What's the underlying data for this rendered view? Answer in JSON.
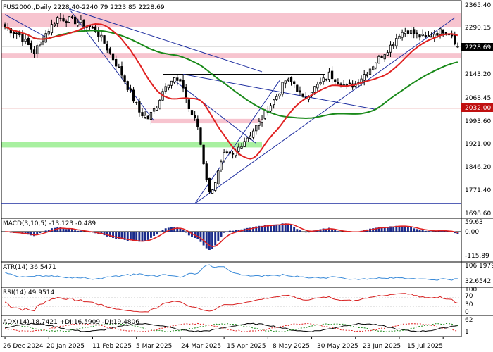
{
  "chart_data": {
    "type": "candlestick",
    "symbol": "FUS2000",
    "timeframe": "Daily",
    "ohlc_label": "FUS2000.,Daily  2228.40-2240.79 2223.85 2228.69",
    "last_open": 2228.4,
    "last_high": 2240.79,
    "last_low": 2223.85,
    "last_close": 2228.69,
    "last_price_label": "2228.69",
    "level_price": 2032.0,
    "level_label": "2032.00",
    "price_ylim": [
      1686,
      2372
    ],
    "price_ticks": [
      "2365.40",
      "2290.15",
      "2143.20",
      "2068.45",
      "1993.60",
      "1921.00",
      "1846.20",
      "1771.40",
      "1698.60"
    ],
    "x_dates": [
      "26 Dec 2024",
      "20 Jan 2025",
      "11 Feb 2025",
      "5 Mar 2025",
      "24 Mar 2025",
      "15 Apr 2025",
      "8 May 2025",
      "30 May 2025",
      "23 Jun 2025",
      "15 Jul 2025"
    ],
    "close_anchors": [
      [
        0,
        2290
      ],
      [
        5,
        2265
      ],
      [
        10,
        2210
      ],
      [
        14,
        2270
      ],
      [
        18,
        2320
      ],
      [
        23,
        2312
      ],
      [
        27,
        2300
      ],
      [
        31,
        2280
      ],
      [
        34,
        2240
      ],
      [
        37,
        2190
      ],
      [
        40,
        2140
      ],
      [
        43,
        2080
      ],
      [
        46,
        2020
      ],
      [
        49,
        2000
      ],
      [
        52,
        2040
      ],
      [
        55,
        2110
      ],
      [
        58,
        2125
      ],
      [
        61,
        2100
      ],
      [
        63,
        2030
      ],
      [
        66,
        1975
      ],
      [
        68,
        1860
      ],
      [
        70,
        1760
      ],
      [
        72,
        1800
      ],
      [
        75,
        1880
      ],
      [
        78,
        1880
      ],
      [
        81,
        1920
      ],
      [
        84,
        1950
      ],
      [
        87,
        1985
      ],
      [
        90,
        2030
      ],
      [
        93,
        2070
      ],
      [
        96,
        2120
      ],
      [
        99,
        2110
      ],
      [
        102,
        2060
      ],
      [
        105,
        2090
      ],
      [
        108,
        2110
      ],
      [
        111,
        2140
      ],
      [
        114,
        2120
      ],
      [
        117,
        2100
      ],
      [
        120,
        2110
      ],
      [
        123,
        2140
      ],
      [
        126,
        2170
      ],
      [
        129,
        2200
      ],
      [
        132,
        2230
      ],
      [
        135,
        2270
      ],
      [
        138,
        2280
      ],
      [
        141,
        2265
      ],
      [
        144,
        2255
      ],
      [
        147,
        2270
      ],
      [
        150,
        2280
      ],
      [
        153,
        2268
      ],
      [
        155,
        2229
      ]
    ],
    "indicators": {
      "macd": {
        "label": "MACD(3,10,5) -13.123 -0.489",
        "value": -13.123,
        "signal": -0.489,
        "ticks": [
          "59.63",
          "0.00",
          "-115.89"
        ]
      },
      "atr": {
        "label": "ATR(14) 36.5471",
        "value": 36.5471,
        "ticks": [
          "106.1979",
          "32.6542"
        ]
      },
      "rsi": {
        "label": "RSI(14) 49.9514",
        "value": 49.9514,
        "ticks": [
          "100",
          "70",
          "30",
          "0"
        ]
      },
      "adx": {
        "label": "ADX(14) 18.7421 +DI:16.5909 -DI:19.4806",
        "adx": 18.7421,
        "plus_di": 16.5909,
        "minus_di": 19.4806,
        "ticks": [
          "62",
          "1"
        ]
      }
    },
    "colors": {
      "bull": "#ffffff",
      "bear": "#000000",
      "candle_edge": "#000000",
      "ma_fast": "#e02020",
      "ma_slow": "#1a8a1a",
      "trend": "#1f2fa0",
      "zone_pink": "#f7c4cf",
      "zone_green": "#a8f0a0",
      "level_line": "#c01010",
      "macd_hist": "#1a2b8a",
      "macd_signal": "#e02020",
      "atr_line": "#3a8ad8",
      "rsi_line": "#d82020",
      "adx_main": "#000000",
      "adx_plus": "#1a8a1a",
      "adx_minus": "#e02020"
    }
  }
}
